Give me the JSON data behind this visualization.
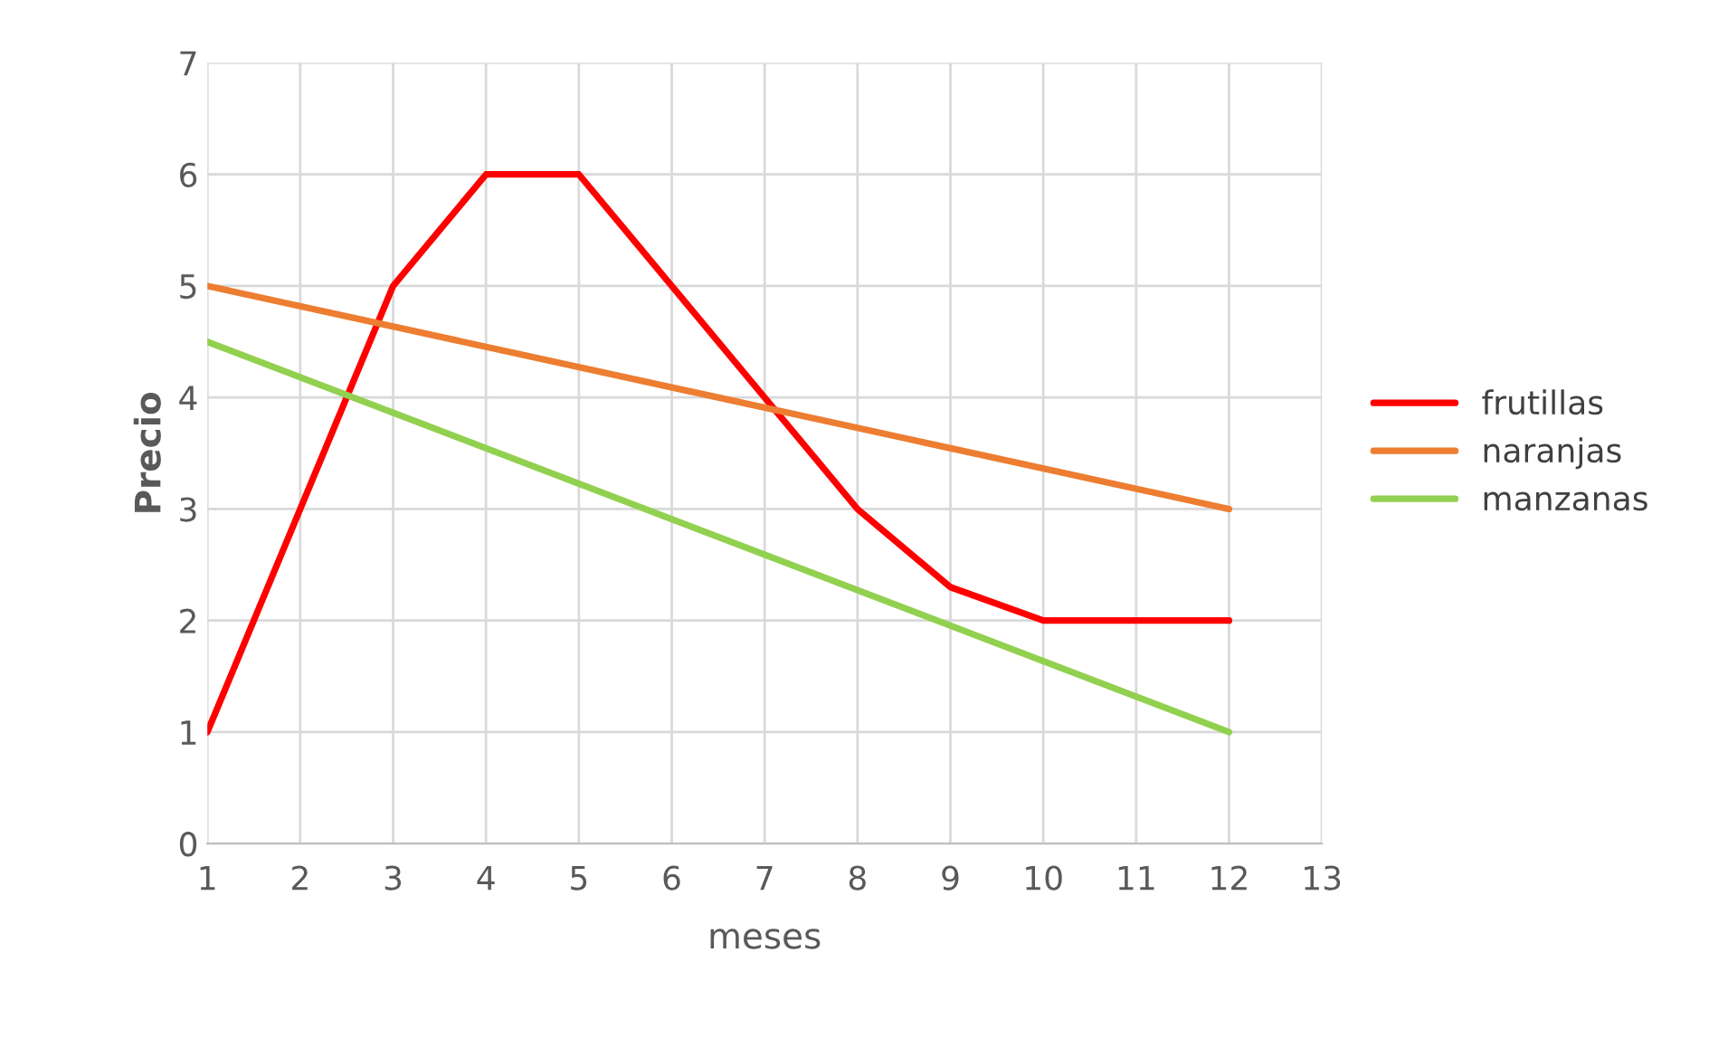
{
  "chart_data": {
    "type": "line",
    "xlabel": "meses",
    "ylabel": "Precio",
    "series": [
      {
        "name": "frutillas",
        "color": "#ff0000",
        "x": [
          1,
          2,
          3,
          4,
          5,
          6,
          7,
          8,
          9,
          10,
          11,
          12
        ],
        "values": [
          1,
          3,
          5,
          6,
          6,
          5,
          4,
          3,
          2.3,
          2,
          2,
          2
        ]
      },
      {
        "name": "naranjas",
        "color": "#ed7d31",
        "x": [
          1,
          12
        ],
        "values": [
          5,
          3
        ]
      },
      {
        "name": "manzanas",
        "color": "#92d050",
        "x": [
          1,
          12
        ],
        "values": [
          4.5,
          1
        ]
      }
    ],
    "xlim": [
      1,
      13
    ],
    "xticks": [
      1,
      2,
      3,
      4,
      5,
      6,
      7,
      8,
      9,
      10,
      11,
      12,
      13
    ],
    "ylim": [
      0,
      7
    ],
    "yticks": [
      0,
      1,
      2,
      3,
      4,
      5,
      6,
      7
    ],
    "grid": true,
    "legend": "right",
    "marker": "none",
    "line_style": "solid"
  }
}
